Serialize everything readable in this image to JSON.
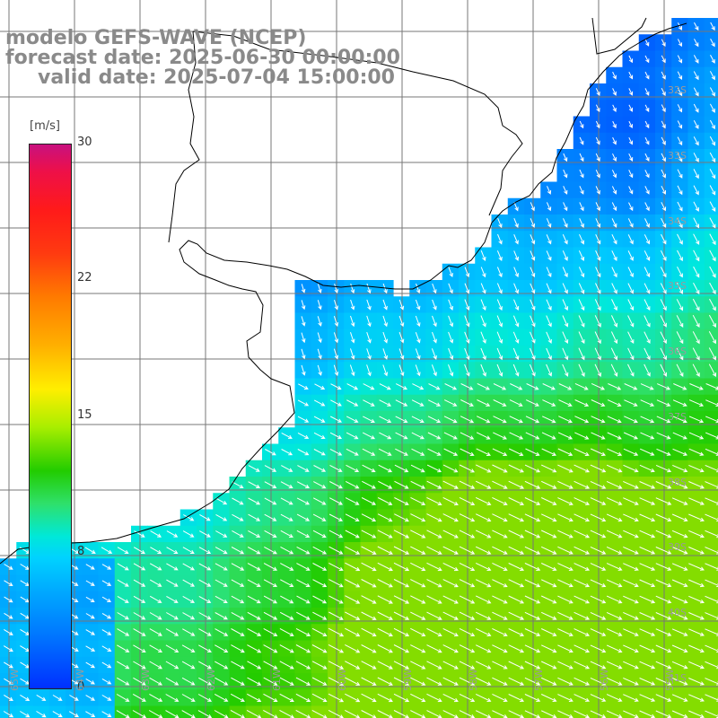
{
  "title": {
    "line1": "modelo GEFS-WAVE (NCEP)",
    "line2": "forecast date: 2025-06-30 00:00:00",
    "line3": "valid date: 2025-07-04 15:00:00"
  },
  "colorbar": {
    "unit": "[m/s]",
    "ticks": [
      "30",
      "22",
      "15",
      "8",
      "0"
    ],
    "tick_values": [
      30,
      22,
      15,
      8,
      0
    ],
    "colors": [
      "#c8117f",
      "#ff1a1a",
      "#ff7a00",
      "#ffee00",
      "#22cc00",
      "#00e8d8",
      "#00aaff",
      "#0030ff"
    ]
  },
  "latitude_labels": [
    "32S",
    "33S",
    "34S",
    "35S",
    "36S",
    "37S",
    "38S",
    "39S",
    "40S",
    "41S"
  ],
  "longitude_labels": [
    "65W",
    "64W",
    "63W",
    "62W",
    "61W",
    "60W",
    "59W",
    "58W",
    "57W",
    "56W",
    "55W"
  ],
  "map": {
    "land_color": "#ffffff",
    "coast_color": "#000000",
    "grid_color": "#777777",
    "arrow_color": "#ffffff",
    "field": "wind speed"
  }
}
